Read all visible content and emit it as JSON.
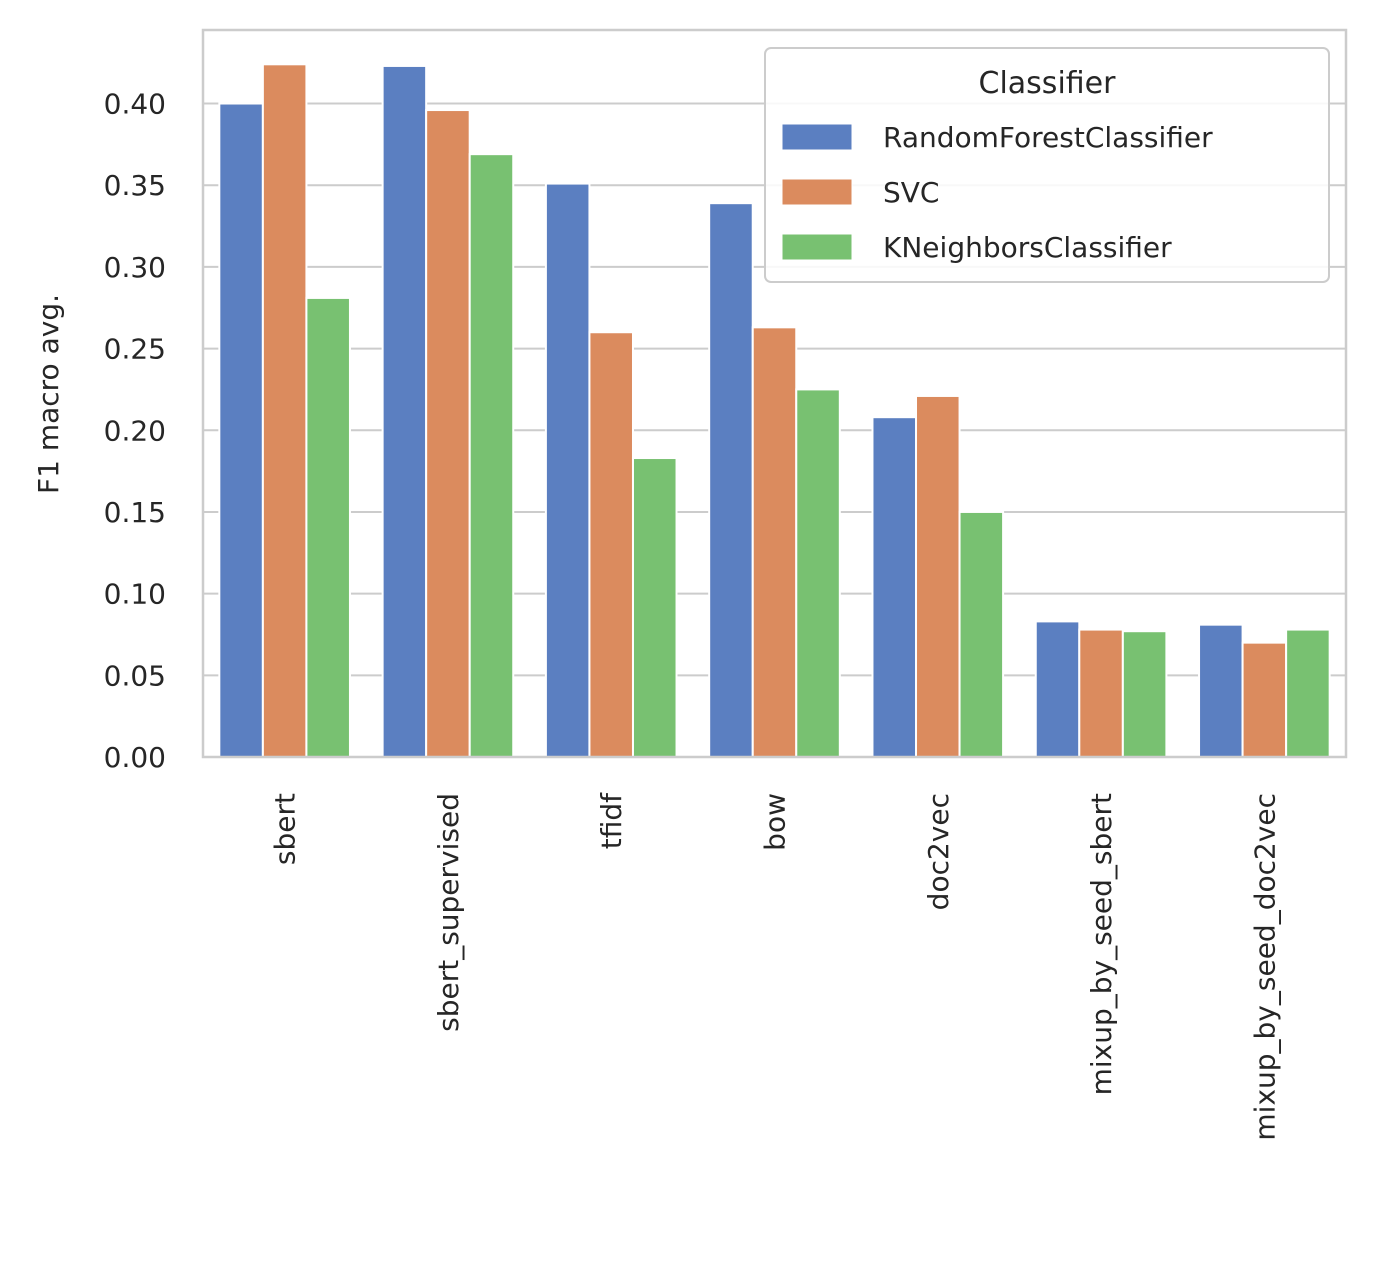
{
  "chart_data": {
    "type": "bar",
    "ylabel": "F1 macro avg.",
    "xlabel": "",
    "ylim": [
      0,
      0.445
    ],
    "yticks": [
      "0.00",
      "0.05",
      "0.10",
      "0.15",
      "0.20",
      "0.25",
      "0.30",
      "0.35",
      "0.40"
    ],
    "categories": [
      "sbert",
      "sbert_supervised",
      "tfidf",
      "bow",
      "doc2vec",
      "mixup_by_seed_sbert",
      "mixup_by_seed_doc2vec"
    ],
    "series": [
      {
        "name": "RandomForestClassifier",
        "color": "#5b7fc1",
        "values": [
          0.4,
          0.423,
          0.351,
          0.339,
          0.208,
          0.083,
          0.081
        ]
      },
      {
        "name": "SVC",
        "color": "#db8b5e",
        "values": [
          0.424,
          0.396,
          0.26,
          0.263,
          0.221,
          0.078,
          0.07
        ]
      },
      {
        "name": "KNeighborsClassifier",
        "color": "#78c171",
        "values": [
          0.281,
          0.369,
          0.183,
          0.225,
          0.15,
          0.077,
          0.078
        ]
      }
    ],
    "legend": {
      "title": "Classifier",
      "placement": "top-right"
    },
    "grid": "horizontal"
  }
}
